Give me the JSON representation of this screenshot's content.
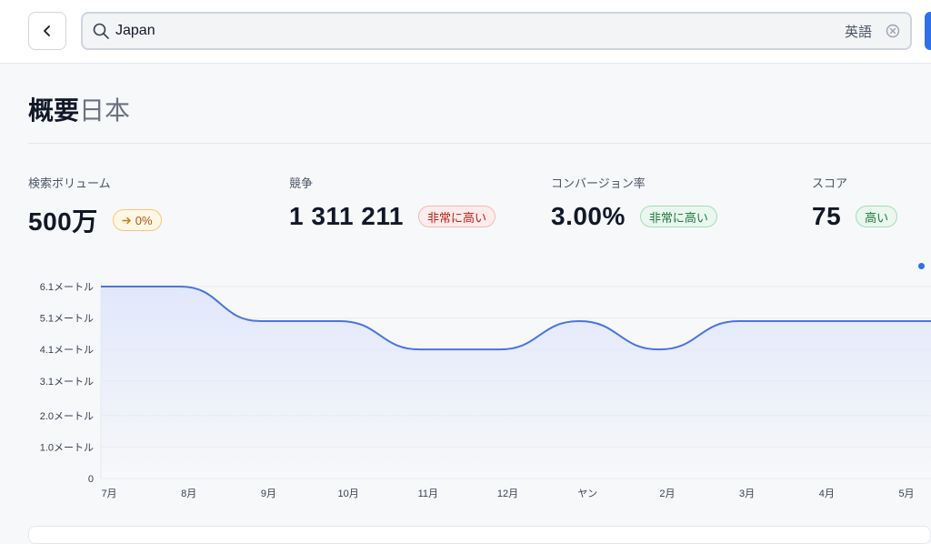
{
  "search": {
    "query": "Japan",
    "language": "英語"
  },
  "overview": {
    "title": "概要",
    "region": "日本"
  },
  "metrics": [
    {
      "label": "検索ボリューム",
      "value": "500万",
      "badge": "0%",
      "tone": "neutral"
    },
    {
      "label": "競争",
      "value": "1 311 211",
      "badge": "非常に高い",
      "tone": "red"
    },
    {
      "label": "コンバージョン率",
      "value": "3.00%",
      "badge": "非常に高い",
      "tone": "green"
    },
    {
      "label": "スコア",
      "value": "75",
      "badge": "高い",
      "tone": "green"
    }
  ],
  "colors": {
    "accent": "#4b74e0",
    "area_top": "#dfe6fb",
    "grid": "#ececf0"
  },
  "chart_data": {
    "type": "area",
    "categories": [
      "7月",
      "8月",
      "9月",
      "10月",
      "11月",
      "12月",
      "ヤン",
      "2月",
      "3月",
      "4月",
      "5月"
    ],
    "values": [
      6.1,
      6.1,
      5.0,
      5.0,
      4.1,
      4.1,
      5.0,
      4.1,
      5.0,
      5.0,
      5.0
    ],
    "y_ticks": [
      "0",
      "1.0メートル",
      "2.0メートル",
      "3.1メートル",
      "4.1メートル",
      "5.1メートル",
      "6.1メートル"
    ],
    "y_tick_values": [
      0,
      1.0,
      2.0,
      3.1,
      4.1,
      5.1,
      6.1
    ],
    "ylim": [
      0,
      6.1
    ],
    "grid": true
  }
}
